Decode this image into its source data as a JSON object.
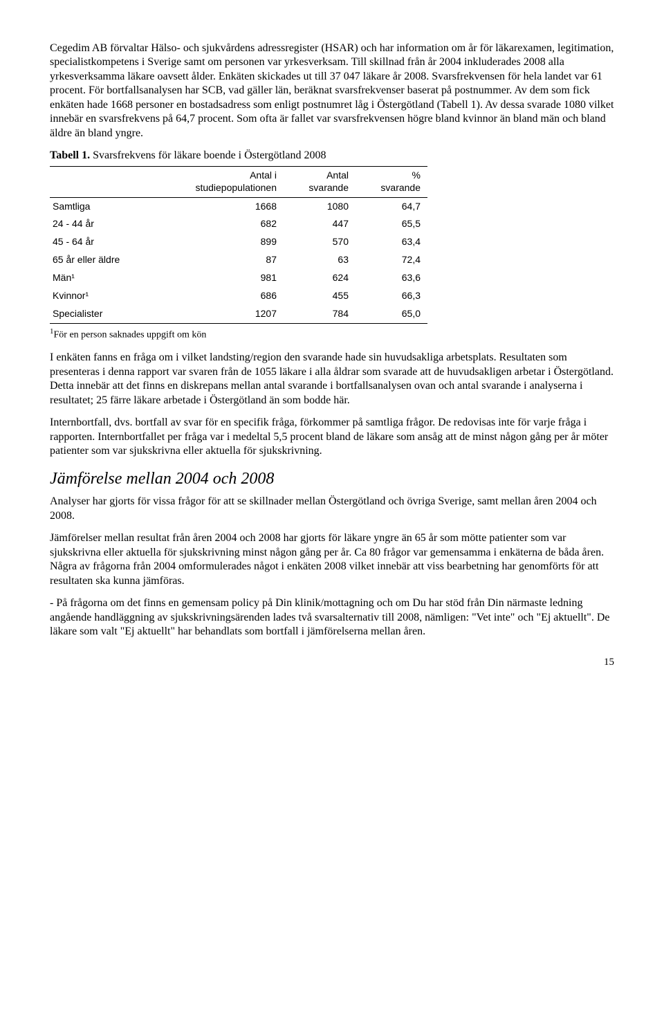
{
  "paragraphs": {
    "p1": "Cegedim AB förvaltar Hälso- och sjukvårdens adressregister (HSAR) och har information om år för läkarexamen, legitimation, specialistkompetens i Sverige samt om personen var yrkesverksam. Till skillnad från år 2004 inkluderades 2008 alla yrkesverksamma läkare oavsett ålder. Enkäten skickades ut till 37 047 läkare år 2008. Svarsfrekvensen för hela landet var 61 procent. För bortfallsanalysen har SCB, vad gäller län, beräknat svarsfrekvenser baserat på postnummer. Av dem som fick enkäten hade 1668 personer en bostadsadress som enligt postnumret låg i Östergötland (Tabell 1). Av dessa svarade 1080 vilket innebär en svarsfrekvens på 64,7 procent. Som ofta är fallet var svarsfrekvensen högre bland kvinnor än bland män och bland äldre än bland yngre.",
    "tableTitleBold": "Tabell 1.",
    "tableTitleRest": " Svarsfrekvens för läkare boende i Östergötland 2008",
    "footnote": "För en person saknades uppgift om kön",
    "p2": "I enkäten fanns en fråga om i vilket landsting/region den svarande hade sin huvudsakliga arbetsplats. Resultaten som presenteras i denna rapport var svaren från de 1055 läkare i alla åldrar som svarade att de huvudsakligen arbetar i Östergötland. Detta innebär att det finns en diskrepans mellan antal svarande i bortfallsanalysen ovan och antal svarande i analyserna i resultatet; 25 färre läkare arbetade i Östergötland än som bodde här.",
    "p3": "Internbortfall, dvs. bortfall av svar för en specifik fråga, förkommer på samtliga frågor. De redovisas inte för varje fråga i rapporten. Internbortfallet per fråga var i medeltal 5,5 procent bland de läkare som ansåg att de minst någon gång per år möter patienter som var sjukskrivna eller aktuella för sjukskrivning.",
    "sectionHeading": "Jämförelse mellan 2004 och 2008",
    "p4": "Analyser har gjorts för vissa frågor för att se skillnader mellan Östergötland och övriga Sverige, samt mellan åren 2004 och 2008.",
    "p5": "Jämförelser mellan resultat från åren 2004 och 2008 har gjorts för läkare yngre än 65 år som mötte patienter som var sjukskrivna eller aktuella för sjukskrivning minst någon gång per år. Ca 80 frågor var gemensamma i enkäterna de båda åren. Några av frågorna från 2004 omformulerades något i enkäten 2008 vilket innebär att viss bearbetning har genomförts för att resultaten ska kunna jämföras.",
    "p6": "- På frågorna om det finns en gemensam policy på Din klinik/mottagning och om Du har stöd från Din närmaste ledning angående handläggning av sjukskrivningsärenden lades två svarsalternativ till 2008, nämligen: \"Vet inte\" och \"Ej aktuellt\". De läkare som valt \"Ej aktuellt\" har behandlats som bortfall i jämförelserna mellan åren."
  },
  "table": {
    "headers": {
      "h0": "",
      "h1a": "Antal i",
      "h1b": "studiepopulationen",
      "h2a": "Antal",
      "h2b": "svarande",
      "h3a": "%",
      "h3b": "svarande"
    },
    "rows": [
      {
        "label": "Samtliga",
        "c1": "1668",
        "c2": "1080",
        "c3": "64,7"
      },
      {
        "label": "24 - 44 år",
        "c1": "682",
        "c2": "447",
        "c3": "65,5"
      },
      {
        "label": "45 - 64 år",
        "c1": "899",
        "c2": "570",
        "c3": "63,4"
      },
      {
        "label": "65 år eller äldre",
        "c1": "87",
        "c2": "63",
        "c3": "72,4"
      },
      {
        "label": "Män¹",
        "c1": "981",
        "c2": "624",
        "c3": "63,6"
      },
      {
        "label": "Kvinnor¹",
        "c1": "686",
        "c2": "455",
        "c3": "66,3"
      },
      {
        "label": "Specialister",
        "c1": "1207",
        "c2": "784",
        "c3": "65,0"
      }
    ]
  },
  "pageNumber": "15"
}
